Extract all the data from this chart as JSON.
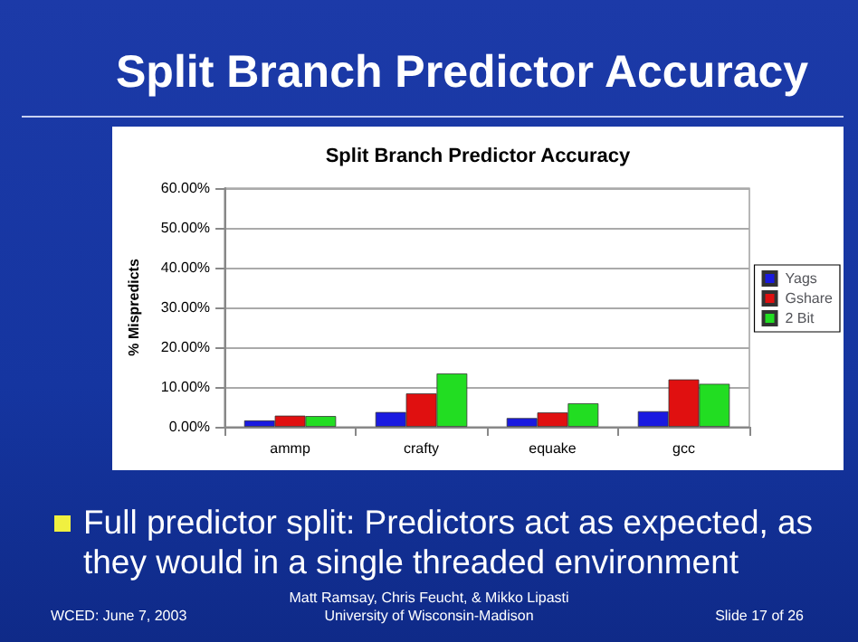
{
  "chart_data": {
    "type": "bar",
    "title": "Split Branch Predictor Accuracy",
    "ylabel": "% Mispredicts",
    "categories": [
      "ammp",
      "crafty",
      "equake",
      "gcc"
    ],
    "series": [
      {
        "name": "Yags",
        "color": "#1a1ae0",
        "values": [
          1.6,
          3.7,
          2.2,
          3.9
        ]
      },
      {
        "name": "Gshare",
        "color": "#e01010",
        "values": [
          2.8,
          8.4,
          3.6,
          11.9
        ]
      },
      {
        "name": "2 Bit",
        "color": "#22dd22",
        "values": [
          2.7,
          13.4,
          5.9,
          10.8
        ]
      }
    ],
    "ylim": [
      0,
      60
    ],
    "yticks": [
      {
        "value": 0,
        "label": "0.00%"
      },
      {
        "value": 10,
        "label": "10.00%"
      },
      {
        "value": 20,
        "label": "20.00%"
      },
      {
        "value": 30,
        "label": "30.00%"
      },
      {
        "value": 40,
        "label": "40.00%"
      },
      {
        "value": 50,
        "label": "50.00%"
      },
      {
        "value": 60,
        "label": "60.00%"
      }
    ],
    "grid": "y",
    "legend": "right",
    "annotations": [
      "Split Branch Predictor Accuracy",
      "Full predictor split:  Predictors act as expected, as they would in a single threaded environment",
      "WCED: June 7, 2003",
      "Matt Ramsay, Chris Feucht, & Mikko Lipasti",
      "University of Wisconsin-Madison",
      "Slide 17 of 26"
    ]
  }
}
